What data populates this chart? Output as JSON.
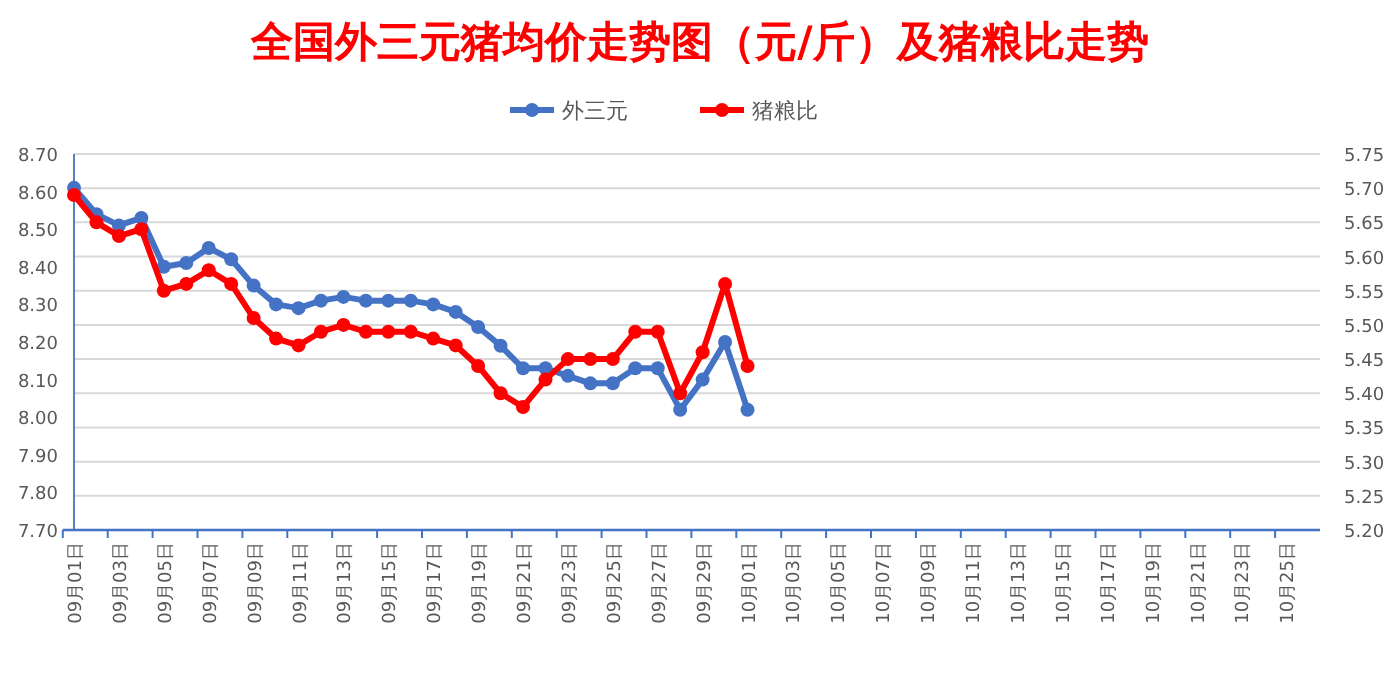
{
  "chart_data": {
    "type": "line",
    "title": "全国外三元猪均价走势图（元/斤）及猪粮比走势",
    "categories": [
      "09月01日",
      null,
      "09月03日",
      null,
      "09月05日",
      null,
      "09月07日",
      null,
      "09月09日",
      null,
      "09月11日",
      null,
      "09月13日",
      null,
      "09月15日",
      null,
      "09月17日",
      null,
      "09月19日",
      null,
      "09月21日",
      null,
      "09月23日",
      null,
      "09月25日",
      null,
      "09月27日",
      null,
      "09月29日",
      null,
      "10月01日",
      null,
      "10月03日",
      null,
      "10月05日",
      null,
      "10月07日",
      null,
      "10月09日",
      null,
      "10月11日",
      null,
      "10月13日",
      null,
      "10月15日",
      null,
      "10月17日",
      null,
      "10月19日",
      null,
      "10月21日",
      null,
      "10月23日",
      null,
      "10月25日",
      null
    ],
    "series": [
      {
        "name": "外三元",
        "color": "#4472c4",
        "values": [
          8.61,
          8.54,
          8.51,
          8.53,
          8.4,
          8.41,
          8.45,
          8.42,
          8.35,
          8.3,
          8.29,
          8.31,
          8.32,
          8.31,
          8.31,
          8.31,
          8.3,
          8.28,
          8.24,
          8.19,
          8.13,
          8.13,
          8.11,
          8.09,
          8.09,
          8.13,
          8.13,
          8.02,
          8.1,
          8.2,
          8.02,
          null,
          null,
          null,
          null,
          null,
          null,
          null,
          null,
          null,
          null,
          null,
          null,
          null,
          null,
          null,
          null,
          null,
          null,
          null,
          null,
          null,
          null,
          null,
          null,
          null
        ]
      },
      {
        "name": "猪粮比",
        "color": "#ff0000",
        "axis": "y2",
        "values": [
          5.69,
          5.65,
          5.63,
          5.64,
          5.55,
          5.56,
          5.58,
          5.56,
          5.51,
          5.48,
          5.47,
          5.49,
          5.5,
          5.49,
          5.49,
          5.49,
          5.48,
          5.47,
          5.44,
          5.4,
          5.38,
          5.42,
          5.45,
          5.45,
          5.45,
          5.49,
          5.49,
          5.4,
          5.46,
          5.56,
          5.44,
          null,
          null,
          null,
          null,
          null,
          null,
          null,
          null,
          null,
          null,
          null,
          null,
          null,
          null,
          null,
          null,
          null,
          null,
          null,
          null,
          null,
          null,
          null,
          null,
          null
        ]
      }
    ],
    "ylim": [
      7.7,
      8.7
    ],
    "yticks": [
      {
        "value": 7.7,
        "label": "7.70"
      },
      {
        "value": 7.8,
        "label": "7.80"
      },
      {
        "value": 7.9,
        "label": "7.90"
      },
      {
        "value": 8.0,
        "label": "8.00"
      },
      {
        "value": 8.1,
        "label": "8.10"
      },
      {
        "value": 8.2,
        "label": "8.20"
      },
      {
        "value": 8.3,
        "label": "8.30"
      },
      {
        "value": 8.4,
        "label": "8.40"
      },
      {
        "value": 8.5,
        "label": "8.50"
      },
      {
        "value": 8.6,
        "label": "8.60"
      },
      {
        "value": 8.7,
        "label": "8.70"
      }
    ],
    "y2lim": [
      5.2,
      5.75
    ],
    "y2ticks": [
      {
        "value": 5.2,
        "label": "5.20"
      },
      {
        "value": 5.25,
        "label": "5.25"
      },
      {
        "value": 5.3,
        "label": "5.30"
      },
      {
        "value": 5.35,
        "label": "5.35"
      },
      {
        "value": 5.4,
        "label": "5.40"
      },
      {
        "value": 5.45,
        "label": "5.45"
      },
      {
        "value": 5.5,
        "label": "5.50"
      },
      {
        "value": 5.55,
        "label": "5.55"
      },
      {
        "value": 5.6,
        "label": "5.60"
      },
      {
        "value": 5.65,
        "label": "5.65"
      },
      {
        "value": 5.7,
        "label": "5.70"
      },
      {
        "value": 5.75,
        "label": "5.75"
      }
    ],
    "grid": "y",
    "legend": "top",
    "marker": "circle"
  }
}
